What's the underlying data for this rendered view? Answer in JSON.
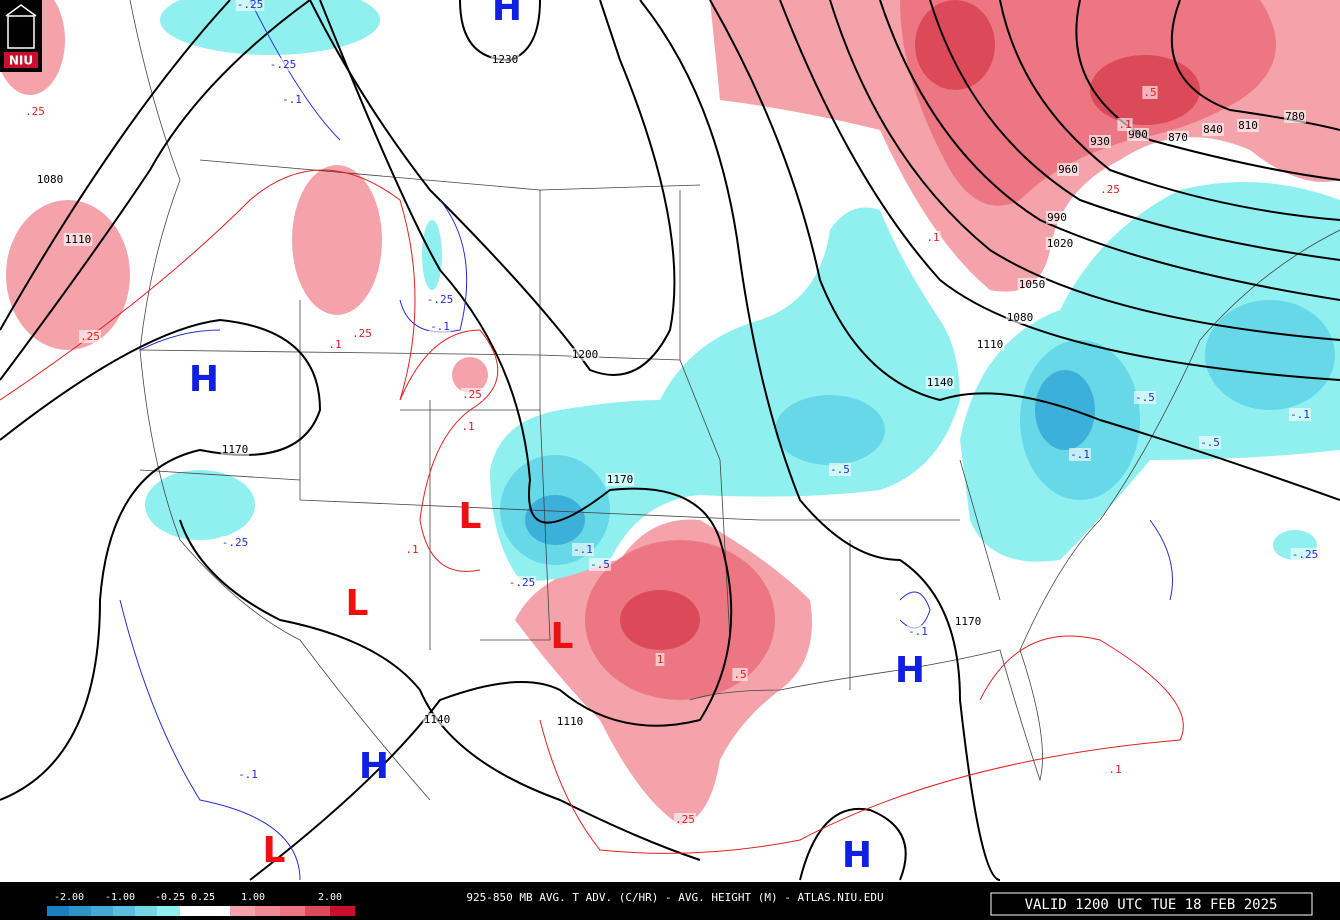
{
  "logo": "NIU",
  "height_labels": [
    "1230",
    "1080",
    "1110",
    "1200",
    "1170",
    "1170",
    "1140",
    "1110",
    "1170",
    "1140",
    "1110",
    "1080",
    "1050",
    "1020",
    "990",
    "960",
    "930",
    "900",
    "870",
    "840",
    "810",
    "780"
  ],
  "warm_labels": [
    ".25",
    ".25",
    ".1",
    ".25",
    ".25",
    ".1",
    ".1",
    "1",
    ".5",
    ".25",
    ".25",
    ".1",
    ".1",
    ".5",
    ".1"
  ],
  "cold_labels": [
    "-.25",
    "-.25",
    "-.1",
    "-.25",
    "-.1",
    "-.5",
    "-.25",
    "-.1",
    "-.5",
    "-.25",
    "-.1",
    "-.1",
    "-.5",
    "-.5",
    "-.1",
    "-.25",
    "-.1"
  ],
  "highs": [
    "H",
    "H",
    "H",
    "H",
    "H"
  ],
  "lows": [
    "L",
    "L",
    "L",
    "L"
  ],
  "footer": {
    "legend_labels": [
      "-2.00",
      "-1.00",
      "-0.25",
      "0.25",
      "1.00",
      "2.00"
    ],
    "title": "925-850 MB AVG. T ADV. (C/HR) - AVG. HEIGHT (M) - ATLAS.NIU.EDU",
    "valid": "VALID 1200 UTC TUE 18 FEB 2025"
  }
}
